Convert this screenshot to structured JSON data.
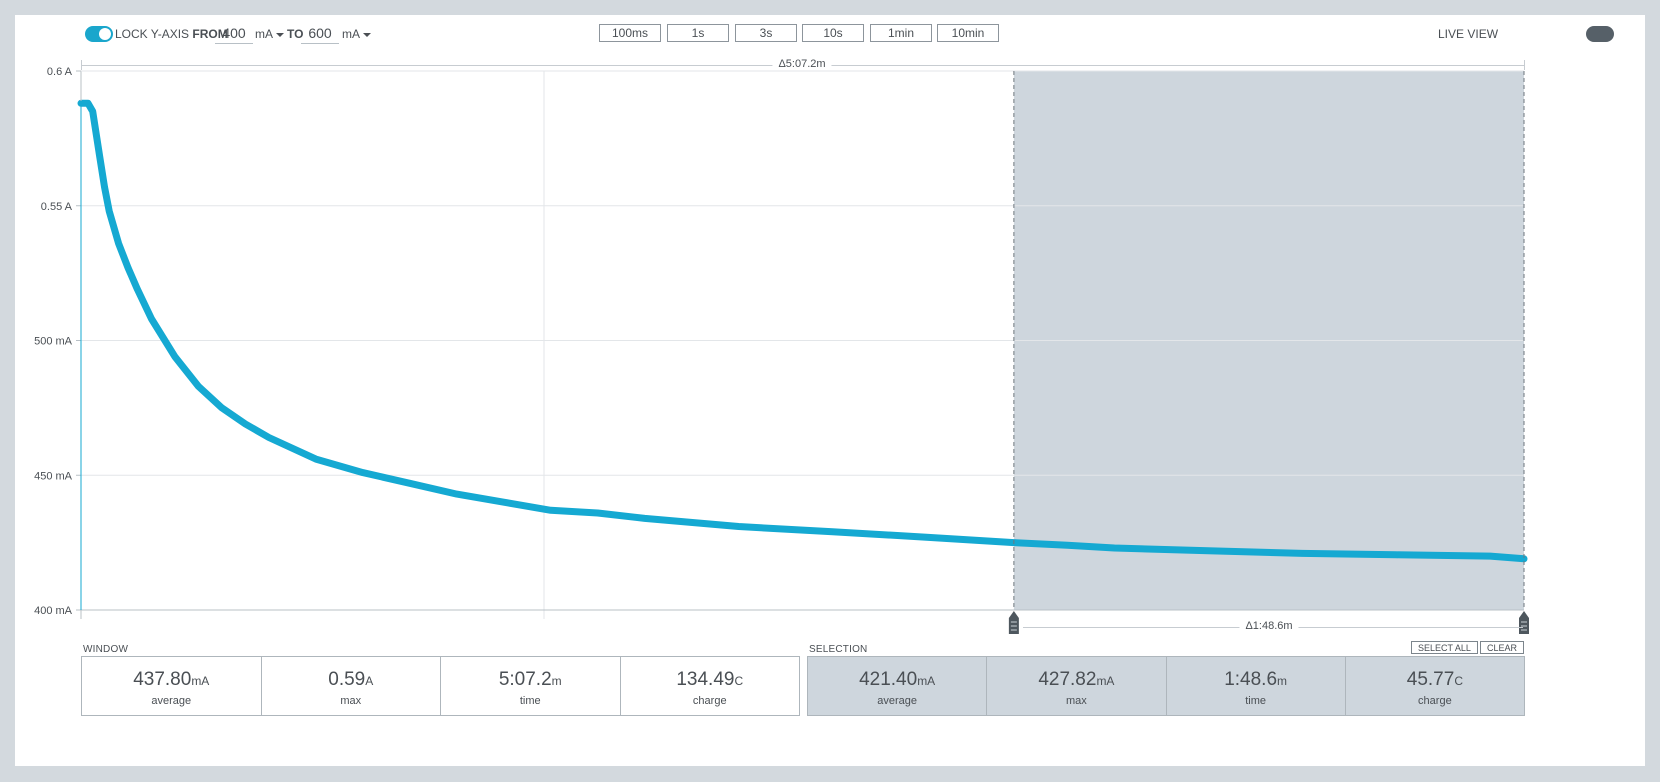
{
  "toolbar": {
    "lock_label": "LOCK Y-AXIS",
    "from_label": "FROM",
    "from_value": "400",
    "from_unit": "mA",
    "to_label": "TO",
    "to_value": "600",
    "to_unit": "mA",
    "window_buttons": [
      "100ms",
      "1s",
      "3s",
      "10s",
      "1min",
      "10min"
    ],
    "live_view_label": "LIVE VIEW",
    "lock_enabled": true,
    "live_view_enabled": false
  },
  "window_span_label": "Δ5:07.2m",
  "selection_span_label": "Δ1:48.6m",
  "colors": {
    "trace": "#15a9d2",
    "selection_fill": "#ced6dd",
    "accent": "#1aa6cc"
  },
  "chart_data": {
    "type": "line",
    "x_unit": "s",
    "xlim": [
      0,
      307.2
    ],
    "ylim": [
      400,
      600
    ],
    "y_unit": "mA",
    "y_ticks": [
      600,
      550,
      500,
      450,
      400
    ],
    "y_tick_labels": [
      "0.6 A",
      "0.55 A",
      "500 mA",
      "450 mA",
      "400 mA"
    ],
    "selection": [
      198.6,
      307.2
    ],
    "series": [
      {
        "x": [
          0,
          1.5,
          2.5,
          4,
          5,
          6,
          8,
          10,
          12,
          15,
          20,
          25,
          30,
          35,
          40,
          50,
          60,
          70,
          80,
          90,
          100,
          110,
          120,
          140,
          160,
          180,
          198.6,
          210,
          220,
          240,
          260,
          280,
          300,
          307.2
        ],
        "y": [
          588,
          588,
          585,
          568,
          557,
          548,
          536,
          527,
          519,
          508,
          494,
          483,
          475,
          469,
          464,
          456,
          451,
          447,
          443,
          440,
          437,
          436,
          434,
          431,
          429,
          427,
          425,
          424,
          423,
          422,
          421,
          420.5,
          420,
          419
        ]
      }
    ]
  },
  "window_stats": {
    "title": "WINDOW",
    "items": [
      {
        "value": "437.80",
        "unit": "mA",
        "label": "average"
      },
      {
        "value": "0.59",
        "unit": "A",
        "label": "max"
      },
      {
        "value": "5:07.2",
        "unit": "m",
        "label": "time"
      },
      {
        "value": "134.49",
        "unit": "C",
        "label": "charge"
      }
    ]
  },
  "selection_stats": {
    "title": "SELECTION",
    "select_all_label": "SELECT ALL",
    "clear_label": "CLEAR",
    "items": [
      {
        "value": "421.40",
        "unit": "mA",
        "label": "average"
      },
      {
        "value": "427.82",
        "unit": "mA",
        "label": "max"
      },
      {
        "value": "1:48.6",
        "unit": "m",
        "label": "time"
      },
      {
        "value": "45.77",
        "unit": "C",
        "label": "charge"
      }
    ]
  }
}
